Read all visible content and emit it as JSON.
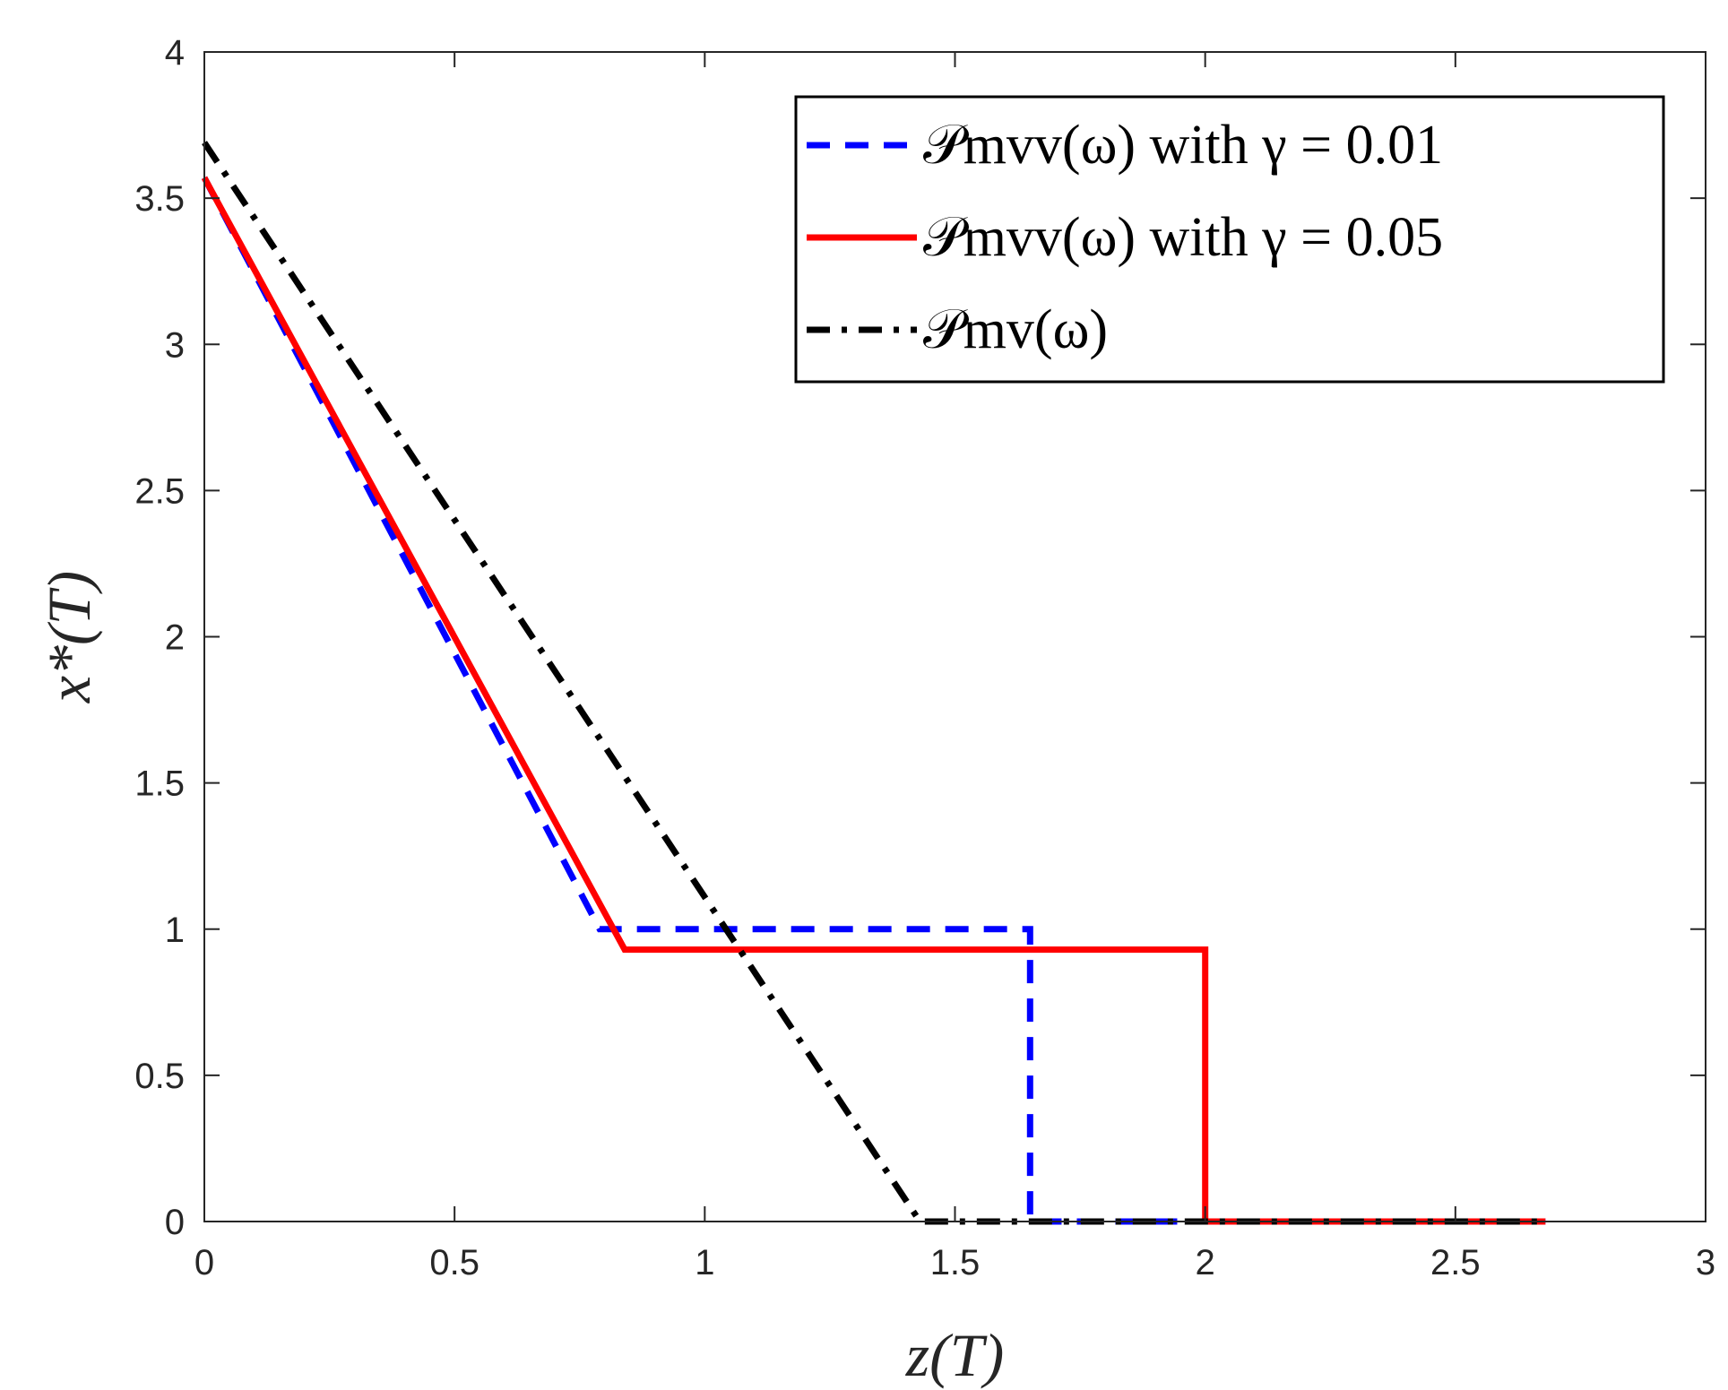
{
  "chart_data": {
    "type": "line",
    "xlabel": "z(T)",
    "ylabel": "x*(T)",
    "xlim": [
      0,
      3
    ],
    "ylim": [
      0,
      4
    ],
    "xticks": [
      0,
      0.5,
      1,
      1.5,
      2,
      2.5,
      3
    ],
    "xtick_labels": [
      "0",
      "0.5",
      "1",
      "1.5",
      "2",
      "2.5",
      "3"
    ],
    "yticks": [
      0,
      0.5,
      1,
      1.5,
      2,
      2.5,
      3,
      3.5,
      4
    ],
    "ytick_labels": [
      "0",
      "0.5",
      "1",
      "1.5",
      "2",
      "2.5",
      "3",
      "3.5",
      "4"
    ],
    "grid": false,
    "legend_position": "top-right",
    "series": [
      {
        "name": "𝒫mvv(ω) with γ = 0.01",
        "color": "#0000ff",
        "style": "dashed",
        "x": [
          0,
          0.79,
          1.65,
          1.65,
          2.68
        ],
        "y": [
          3.57,
          1.0,
          1.0,
          0,
          0
        ]
      },
      {
        "name": "𝒫mvv(ω) with γ = 0.05",
        "color": "#ff0000",
        "style": "solid",
        "x": [
          0,
          0.84,
          2.0,
          2.0,
          2.68
        ],
        "y": [
          3.57,
          0.93,
          0.93,
          0,
          0
        ]
      },
      {
        "name": "𝒫mv(ω)",
        "color": "#000000",
        "style": "dashdot",
        "x": [
          0,
          1.43,
          2.68
        ],
        "y": [
          3.69,
          0,
          0
        ]
      }
    ]
  }
}
